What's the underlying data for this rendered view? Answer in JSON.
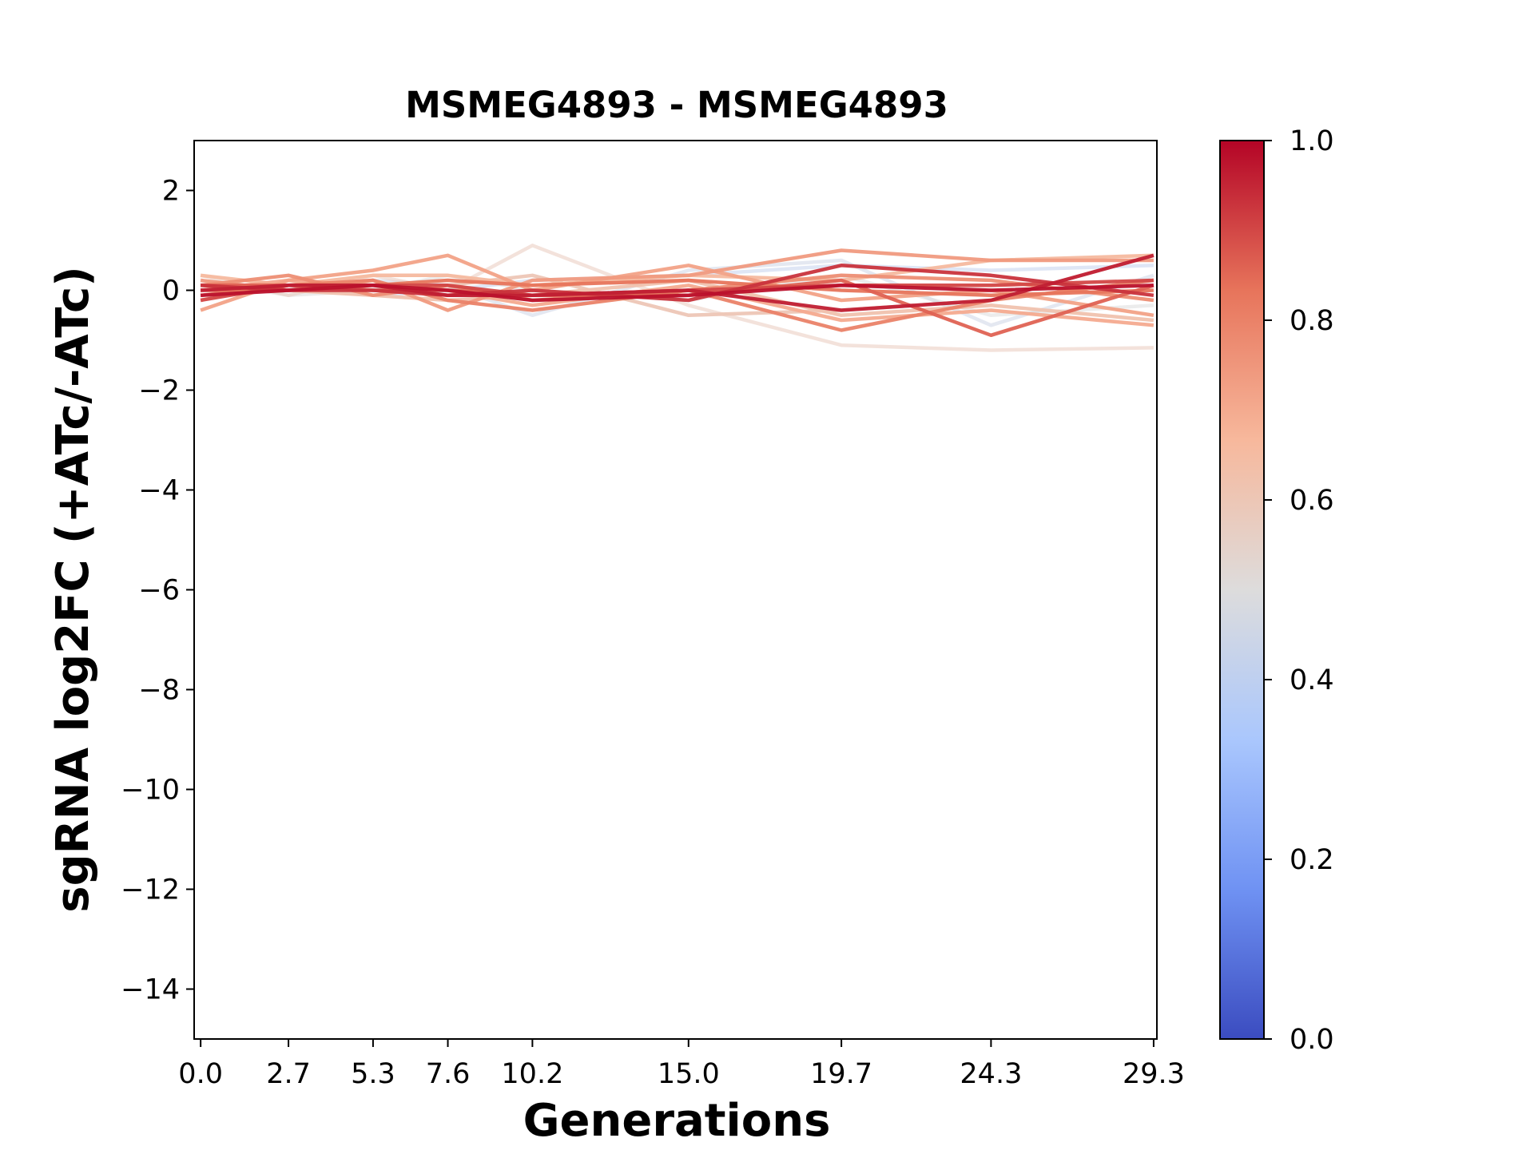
{
  "chart_data": {
    "type": "line",
    "title": "MSMEG4893 - MSMEG4893",
    "xlabel": "Generations",
    "ylabel": "sgRNA log2FC (+ATc/-ATc)",
    "x": [
      0.0,
      2.7,
      5.3,
      7.6,
      10.2,
      15.0,
      19.7,
      24.3,
      29.3
    ],
    "x_tick_labels": [
      "0.0",
      "2.7",
      "5.3",
      "7.6",
      "10.2",
      "15.0",
      "19.7",
      "24.3",
      "29.3"
    ],
    "xlim": [
      -0.2,
      29.4
    ],
    "ylim": [
      -15,
      3
    ],
    "y_ticks": [
      2,
      0,
      -2,
      -4,
      -6,
      -8,
      -10,
      -12,
      -14
    ],
    "y_tick_labels": [
      "2",
      "0",
      "−2",
      "−4",
      "−6",
      "−8",
      "−10",
      "−12",
      "−14"
    ],
    "grid": false,
    "colorbar": {
      "colormap": "coolwarm",
      "range": [
        0.0,
        1.0
      ],
      "tick_values": [
        0.0,
        0.2,
        0.4,
        0.6,
        0.8,
        1.0
      ],
      "tick_labels": [
        "0.0",
        "0.2",
        "0.4",
        "0.6",
        "0.8",
        "1.0"
      ],
      "colors": [
        "#3b4cc0",
        "#6f92f3",
        "#aac7fd",
        "#dddcdc",
        "#f7b89c",
        "#e7745b",
        "#b40426"
      ]
    },
    "series": [
      {
        "color_value": 0.45,
        "values": [
          0.1,
          0.0,
          0.2,
          0.1,
          -0.5,
          0.4,
          0.6,
          -0.7,
          0.3
        ]
      },
      {
        "color_value": 0.42,
        "values": [
          0.0,
          0.1,
          -0.1,
          0.0,
          0.2,
          0.3,
          0.5,
          0.4,
          0.5
        ]
      },
      {
        "color_value": 0.5,
        "values": [
          0.2,
          -0.1,
          0.0,
          0.3,
          0.0,
          -0.2,
          0.3,
          -0.5,
          -0.3
        ]
      },
      {
        "color_value": 0.58,
        "values": [
          0.3,
          -0.1,
          0.3,
          0.0,
          0.9,
          -0.3,
          -1.1,
          -1.2,
          -1.15
        ]
      },
      {
        "color_value": 0.6,
        "values": [
          -0.2,
          0.2,
          0.0,
          0.1,
          0.3,
          -0.5,
          -0.4,
          -0.2,
          0.7
        ]
      },
      {
        "color_value": 0.62,
        "values": [
          0.1,
          0.0,
          -0.1,
          -0.2,
          -0.1,
          0.2,
          -0.5,
          -0.3,
          -0.6
        ]
      },
      {
        "color_value": 0.66,
        "values": [
          0.3,
          0.1,
          0.3,
          0.3,
          0.1,
          0.3,
          0.2,
          0.6,
          0.7
        ]
      },
      {
        "color_value": 0.7,
        "values": [
          0.0,
          0.2,
          0.1,
          0.0,
          -0.3,
          0.1,
          -0.6,
          -0.4,
          -0.7
        ]
      },
      {
        "color_value": 0.72,
        "values": [
          -0.4,
          0.2,
          0.4,
          0.7,
          0.0,
          0.5,
          -0.2,
          0.0,
          -0.5
        ]
      },
      {
        "color_value": 0.74,
        "values": [
          0.2,
          0.0,
          0.2,
          -0.4,
          0.2,
          0.3,
          0.8,
          0.6,
          0.6
        ]
      },
      {
        "color_value": 0.77,
        "values": [
          0.1,
          0.3,
          -0.1,
          0.1,
          -0.2,
          0.0,
          0.3,
          0.2,
          -0.2
        ]
      },
      {
        "color_value": 0.8,
        "values": [
          -0.1,
          0.1,
          0.2,
          -0.2,
          -0.4,
          0.0,
          -0.8,
          -0.2,
          0.2
        ]
      },
      {
        "color_value": 0.83,
        "values": [
          0.0,
          0.0,
          0.1,
          0.2,
          0.1,
          0.2,
          0.0,
          -0.1,
          0.0
        ]
      },
      {
        "color_value": 0.86,
        "values": [
          0.1,
          0.1,
          0.0,
          0.0,
          -0.1,
          -0.1,
          0.2,
          -0.9,
          0.1
        ]
      },
      {
        "color_value": 0.9,
        "values": [
          -0.2,
          0.1,
          0.1,
          0.1,
          -0.1,
          0.0,
          0.1,
          0.1,
          0.2
        ]
      },
      {
        "color_value": 0.93,
        "values": [
          0.1,
          0.0,
          0.0,
          -0.1,
          0.0,
          -0.2,
          0.5,
          0.3,
          -0.1
        ]
      },
      {
        "color_value": 0.96,
        "values": [
          0.0,
          0.1,
          0.1,
          -0.1,
          -0.1,
          0.0,
          -0.4,
          -0.2,
          0.7
        ]
      },
      {
        "color_value": 0.98,
        "values": [
          -0.1,
          0.0,
          0.1,
          0.0,
          -0.2,
          -0.1,
          0.1,
          0.0,
          0.1
        ]
      }
    ]
  }
}
